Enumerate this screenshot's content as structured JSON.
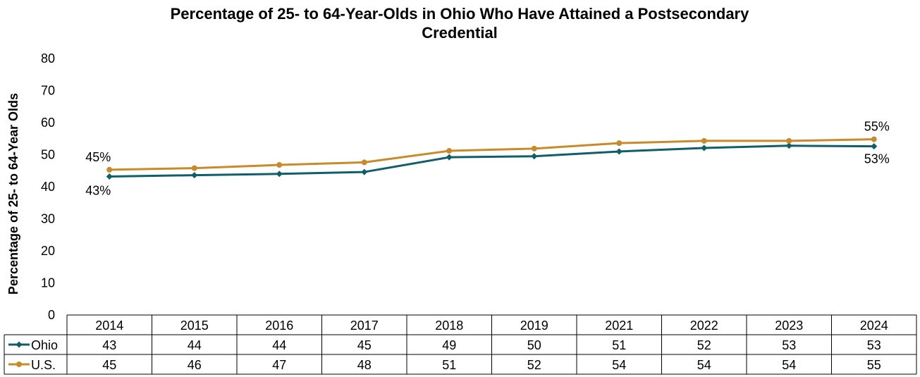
{
  "chart_data": {
    "type": "line",
    "title_line1": "Percentage of 25- to 64-Year-Olds in Ohio Who Have Attained a Postsecondary",
    "title_line2": "Credential",
    "ylabel": "Percentage of 25- to 64-Year Olds",
    "ylim": [
      0,
      80
    ],
    "yticks": [
      "0",
      "10",
      "20",
      "30",
      "40",
      "50",
      "60",
      "70",
      "80"
    ],
    "grid": false,
    "legend": "data-table",
    "categories": [
      "2014",
      "2015",
      "2016",
      "2017",
      "2018",
      "2019",
      "2021",
      "2022",
      "2023",
      "2024"
    ],
    "series": [
      {
        "name": "Ohio",
        "color": "#0f5f6b",
        "marker": "diamond",
        "values": [
          43.2,
          43.6,
          44.0,
          44.6,
          49.2,
          49.5,
          51.0,
          52.1,
          52.8,
          52.6
        ],
        "table_values": [
          "43",
          "44",
          "44",
          "45",
          "49",
          "50",
          "51",
          "52",
          "53",
          "53"
        ],
        "first_label": "43%",
        "last_label": "53%"
      },
      {
        "name": "U.S.",
        "color": "#c98b2a",
        "marker": "circle",
        "values": [
          45.3,
          45.8,
          46.8,
          47.6,
          51.2,
          51.9,
          53.6,
          54.3,
          54.3,
          54.8
        ],
        "table_values": [
          "45",
          "46",
          "47",
          "48",
          "51",
          "52",
          "54",
          "54",
          "54",
          "55"
        ],
        "first_label": "45%",
        "last_label": "55%"
      }
    ]
  }
}
